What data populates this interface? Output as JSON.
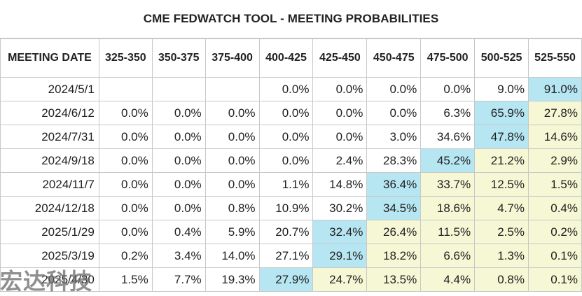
{
  "title": "CME FEDWATCH TOOL - MEETING PROBABILITIES",
  "headers": [
    "MEETING DATE",
    "325-350",
    "350-375",
    "375-400",
    "400-425",
    "425-450",
    "450-475",
    "475-500",
    "500-525",
    "525-550"
  ],
  "rows": [
    {
      "date": "2024/5/1",
      "cells": [
        {
          "v": "",
          "c": "blank"
        },
        {
          "v": "",
          "c": "blank"
        },
        {
          "v": "",
          "c": "blank"
        },
        {
          "v": "0.0%",
          "c": ""
        },
        {
          "v": "0.0%",
          "c": ""
        },
        {
          "v": "0.0%",
          "c": ""
        },
        {
          "v": "0.0%",
          "c": ""
        },
        {
          "v": "9.0%",
          "c": ""
        },
        {
          "v": "91.0%",
          "c": "hi"
        }
      ]
    },
    {
      "date": "2024/6/12",
      "cells": [
        {
          "v": "0.0%",
          "c": ""
        },
        {
          "v": "0.0%",
          "c": ""
        },
        {
          "v": "0.0%",
          "c": ""
        },
        {
          "v": "0.0%",
          "c": ""
        },
        {
          "v": "0.0%",
          "c": ""
        },
        {
          "v": "0.0%",
          "c": ""
        },
        {
          "v": "6.3%",
          "c": ""
        },
        {
          "v": "65.9%",
          "c": "hi"
        },
        {
          "v": "27.8%",
          "c": "mid"
        }
      ]
    },
    {
      "date": "2024/7/31",
      "cells": [
        {
          "v": "0.0%",
          "c": ""
        },
        {
          "v": "0.0%",
          "c": ""
        },
        {
          "v": "0.0%",
          "c": ""
        },
        {
          "v": "0.0%",
          "c": ""
        },
        {
          "v": "0.0%",
          "c": ""
        },
        {
          "v": "3.0%",
          "c": ""
        },
        {
          "v": "34.6%",
          "c": ""
        },
        {
          "v": "47.8%",
          "c": "hi"
        },
        {
          "v": "14.6%",
          "c": "mid"
        }
      ]
    },
    {
      "date": "2024/9/18",
      "cells": [
        {
          "v": "0.0%",
          "c": ""
        },
        {
          "v": "0.0%",
          "c": ""
        },
        {
          "v": "0.0%",
          "c": ""
        },
        {
          "v": "0.0%",
          "c": ""
        },
        {
          "v": "2.4%",
          "c": ""
        },
        {
          "v": "28.3%",
          "c": ""
        },
        {
          "v": "45.2%",
          "c": "hi"
        },
        {
          "v": "21.2%",
          "c": "mid"
        },
        {
          "v": "2.9%",
          "c": "mid"
        }
      ]
    },
    {
      "date": "2024/11/7",
      "cells": [
        {
          "v": "0.0%",
          "c": ""
        },
        {
          "v": "0.0%",
          "c": ""
        },
        {
          "v": "0.0%",
          "c": ""
        },
        {
          "v": "1.1%",
          "c": ""
        },
        {
          "v": "14.8%",
          "c": ""
        },
        {
          "v": "36.4%",
          "c": "hi"
        },
        {
          "v": "33.7%",
          "c": "mid"
        },
        {
          "v": "12.5%",
          "c": "mid"
        },
        {
          "v": "1.5%",
          "c": "mid"
        }
      ]
    },
    {
      "date": "2024/12/18",
      "cells": [
        {
          "v": "0.0%",
          "c": ""
        },
        {
          "v": "0.0%",
          "c": ""
        },
        {
          "v": "0.8%",
          "c": ""
        },
        {
          "v": "10.9%",
          "c": ""
        },
        {
          "v": "30.2%",
          "c": ""
        },
        {
          "v": "34.5%",
          "c": "hi"
        },
        {
          "v": "18.6%",
          "c": "mid"
        },
        {
          "v": "4.7%",
          "c": "mid"
        },
        {
          "v": "0.4%",
          "c": "mid"
        }
      ]
    },
    {
      "date": "2025/1/29",
      "cells": [
        {
          "v": "0.0%",
          "c": ""
        },
        {
          "v": "0.4%",
          "c": ""
        },
        {
          "v": "5.9%",
          "c": ""
        },
        {
          "v": "20.7%",
          "c": ""
        },
        {
          "v": "32.4%",
          "c": "hi"
        },
        {
          "v": "26.4%",
          "c": "mid"
        },
        {
          "v": "11.5%",
          "c": "mid"
        },
        {
          "v": "2.5%",
          "c": "mid"
        },
        {
          "v": "0.2%",
          "c": "mid"
        }
      ]
    },
    {
      "date": "2025/3/19",
      "cells": [
        {
          "v": "0.2%",
          "c": ""
        },
        {
          "v": "3.4%",
          "c": ""
        },
        {
          "v": "14.0%",
          "c": ""
        },
        {
          "v": "27.1%",
          "c": ""
        },
        {
          "v": "29.1%",
          "c": "hi"
        },
        {
          "v": "18.2%",
          "c": "mid"
        },
        {
          "v": "6.6%",
          "c": "mid"
        },
        {
          "v": "1.3%",
          "c": "mid"
        },
        {
          "v": "0.1%",
          "c": "mid"
        }
      ]
    },
    {
      "date": "2025/4/30",
      "cells": [
        {
          "v": "1.5%",
          "c": ""
        },
        {
          "v": "7.7%",
          "c": ""
        },
        {
          "v": "19.3%",
          "c": ""
        },
        {
          "v": "27.9%",
          "c": "hi"
        },
        {
          "v": "24.7%",
          "c": "mid"
        },
        {
          "v": "13.5%",
          "c": "mid"
        },
        {
          "v": "4.4%",
          "c": "mid"
        },
        {
          "v": "0.8%",
          "c": "mid"
        },
        {
          "v": "0.1%",
          "c": "mid"
        }
      ]
    }
  ],
  "watermark": "宏达科技",
  "colors": {
    "highlight": "#b7e6f3",
    "secondary": "#f6f7d4",
    "border": "#c8c8c8"
  }
}
